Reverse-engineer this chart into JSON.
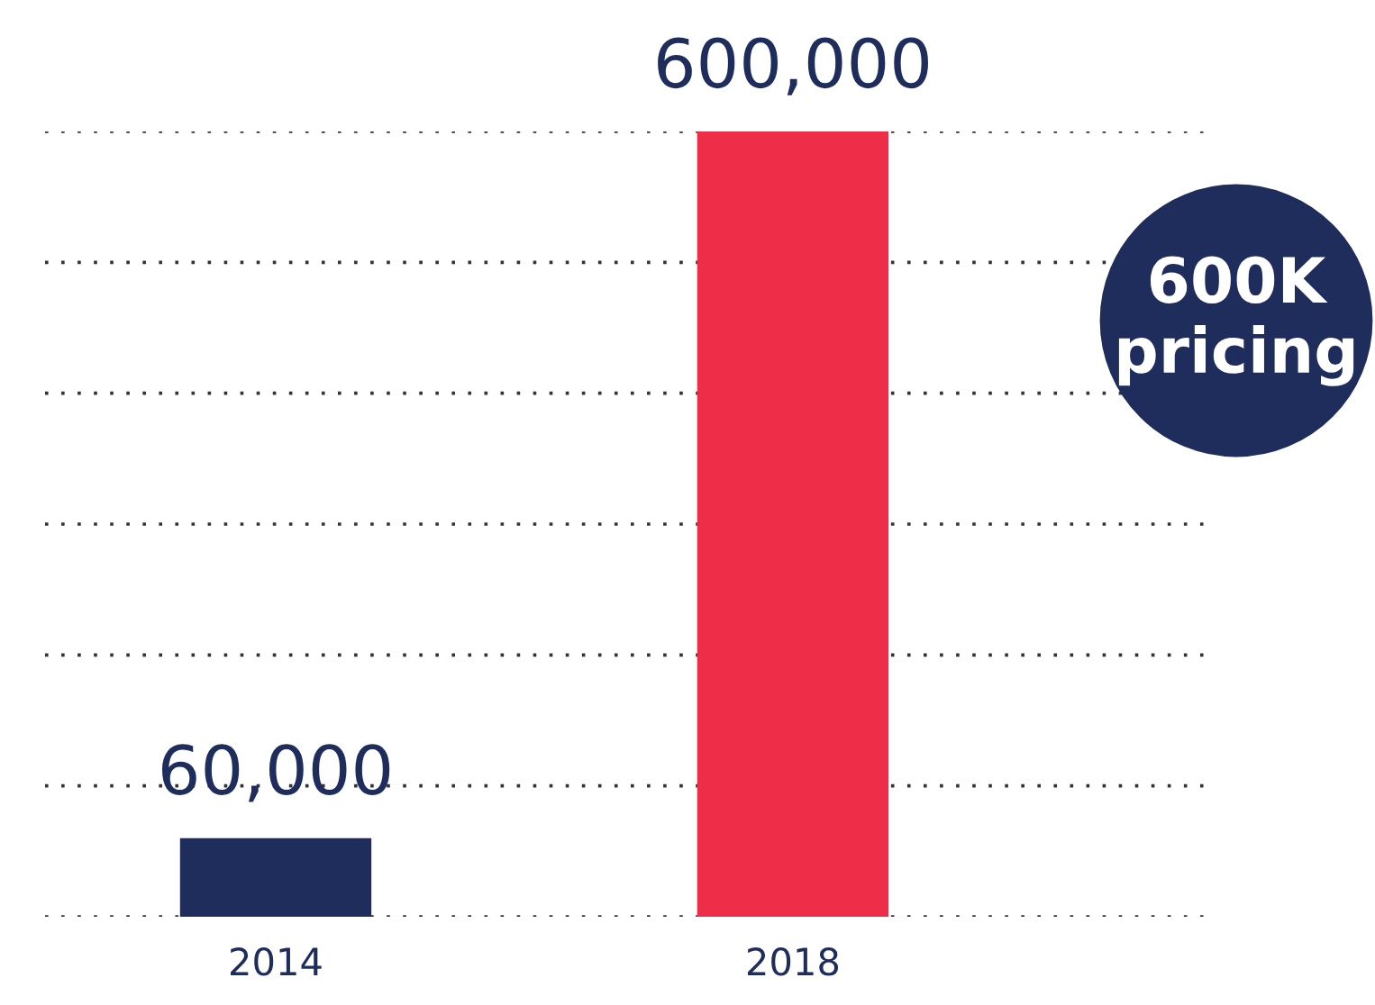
{
  "chart_data": {
    "type": "bar",
    "categories": [
      "2014",
      "2018"
    ],
    "values": [
      60000,
      600000
    ],
    "colors": [
      "#1f2d5c",
      "#ee2e48"
    ],
    "ylim": [
      0,
      600000
    ],
    "yticks": [
      {
        "value": 0,
        "label": null
      },
      {
        "value": 100000,
        "label": null
      },
      {
        "value": 200000,
        "label": null
      },
      {
        "value": 300000,
        "label": null
      },
      {
        "value": 400000,
        "label": null
      },
      {
        "value": 500000,
        "label": null
      },
      {
        "value": 600000,
        "label": null
      }
    ],
    "tick_labels": "x",
    "grid": "y",
    "line_style": "dotted",
    "data_labels": true,
    "value_labels": [
      "60,000",
      "600,000"
    ],
    "annotations": [
      "600K\npricing"
    ]
  }
}
